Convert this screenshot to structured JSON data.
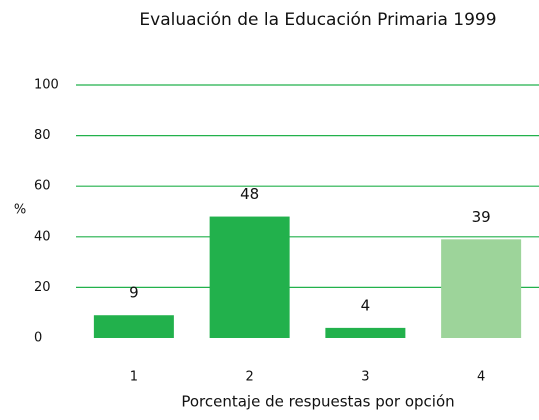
{
  "chart_data": {
    "type": "bar",
    "title": "Evaluación de la Educación Primaria 1999",
    "x_label": "Porcentaje de respuestas por opción",
    "y_label": "%",
    "categories": [
      "1",
      "2",
      "3",
      "4"
    ],
    "values": [
      9,
      48,
      4,
      39
    ],
    "colors": [
      "#22b14c",
      "#22b14c",
      "#22b14c",
      "#9dd49a"
    ],
    "ylim": [
      0,
      100
    ],
    "yticks": [
      0,
      20,
      40,
      60,
      80,
      100
    ],
    "grid": true
  }
}
